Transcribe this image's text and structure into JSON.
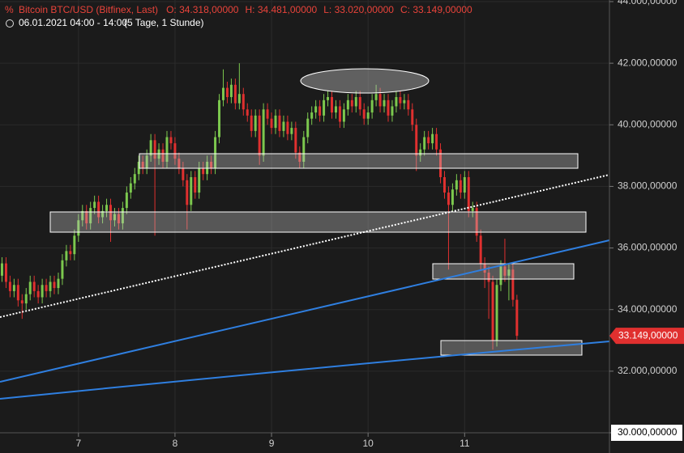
{
  "chart_data": {
    "type": "candlestick",
    "title": "Bitcoin BTC/USD (Bitfinex, Last)",
    "quote": [
      {
        "label": "O: 34.318,00000",
        "value": 34318
      },
      {
        "label": "H: 34.481,00000",
        "value": 34481
      },
      {
        "label": "L: 33.020,00000",
        "value": 33020
      },
      {
        "label": "C: 33.149,00000",
        "value": 33149
      }
    ],
    "subtitle": "06.01.2021 04:00 - 14:00",
    "period": "(5 Tage, 1 Stunde)",
    "up_color": "#7cc84e",
    "down_color": "#e0302f",
    "grid": true,
    "xlim": [
      0.5,
      152
    ],
    "xticks": [
      {
        "value": 20,
        "label": "7"
      },
      {
        "value": 44,
        "label": "8"
      },
      {
        "value": 68,
        "label": "9"
      },
      {
        "value": 92,
        "label": "10"
      },
      {
        "value": 116,
        "label": "11"
      }
    ],
    "ylim": [
      30000,
      44000
    ],
    "yticks": [
      {
        "value": 30000,
        "label": "30.000,00000"
      },
      {
        "value": 32000,
        "label": "32.000,00000"
      },
      {
        "value": 34000,
        "label": "34.000,00000"
      },
      {
        "value": 36000,
        "label": "36.000,00000"
      },
      {
        "value": 38000,
        "label": "38.000,00000"
      },
      {
        "value": 40000,
        "label": "40.000,00000"
      },
      {
        "value": 42000,
        "label": "42.000,00000"
      },
      {
        "value": 44000,
        "label": "44.000,00000"
      }
    ],
    "last_price": {
      "value": 33149,
      "label": "33.149,00000"
    },
    "open": [
      35300,
      35100,
      35500,
      34900,
      34600,
      34800,
      34300,
      34200,
      34500,
      34900,
      34600,
      34400,
      34800,
      34600,
      34900,
      34700,
      35000,
      35600,
      35900,
      35800,
      36400,
      36900,
      37200,
      36800,
      37300,
      37500,
      37000,
      37200,
      37400,
      36900,
      37100,
      36800,
      37300,
      37800,
      38100,
      38400,
      38800,
      38600,
      39000,
      39500,
      38900,
      39200,
      38800,
      39600,
      39400,
      38900,
      38600,
      38200,
      37400,
      38300,
      37800,
      38600,
      38400,
      38800,
      38600,
      39600,
      40800,
      41200,
      40900,
      41300,
      40700,
      41000,
      40500,
      40300,
      39800,
      40300,
      39000,
      40500,
      40200,
      39900,
      40300,
      39800,
      40100,
      39700,
      39900,
      39100,
      38800,
      39600,
      40200,
      40400,
      40600,
      40300,
      40800,
      40900,
      40400,
      40600,
      40100,
      40500,
      40800,
      40600,
      40900,
      40500,
      40200,
      40400,
      40800,
      41000,
      40600,
      40800,
      40300,
      40600,
      40900,
      40700,
      40800,
      40500,
      40000,
      39000,
      39200,
      39600,
      39400,
      39700,
      39200,
      38300,
      37800,
      37400,
      37900,
      38200,
      37800,
      38300,
      37200,
      37300,
      36400,
      35500,
      35200,
      34900,
      33000,
      34800,
      35400,
      35100,
      35300,
      34318
    ],
    "high": [
      35500,
      35700,
      35700,
      35100,
      35000,
      35000,
      34500,
      34700,
      35100,
      35100,
      34800,
      35000,
      35000,
      35100,
      35100,
      35200,
      35800,
      36100,
      36100,
      36600,
      37100,
      37400,
      37400,
      37500,
      37700,
      37700,
      37400,
      37600,
      37600,
      37300,
      37300,
      37500,
      38000,
      38300,
      38600,
      39000,
      39000,
      39200,
      39700,
      39700,
      39400,
      39400,
      39800,
      39800,
      39600,
      39100,
      38800,
      38400,
      38500,
      38500,
      38800,
      38800,
      39000,
      39000,
      39800,
      41000,
      41800,
      41400,
      41500,
      41500,
      42000,
      41200,
      40700,
      40500,
      40500,
      40500,
      40700,
      40700,
      40400,
      40500,
      40500,
      40300,
      40300,
      40100,
      40100,
      39300,
      39800,
      40400,
      40600,
      40800,
      40800,
      41000,
      41100,
      41100,
      40800,
      40800,
      40700,
      41000,
      41000,
      41100,
      41100,
      40700,
      40600,
      41000,
      41300,
      41200,
      41000,
      41000,
      40800,
      41100,
      41100,
      41000,
      41000,
      40700,
      40200,
      39400,
      39800,
      39800,
      39900,
      39900,
      39400,
      38500,
      38000,
      38100,
      38400,
      38400,
      38500,
      38500,
      37500,
      37500,
      36600,
      35700,
      35400,
      35100,
      35000,
      35600,
      36300,
      35500,
      35500,
      34481
    ],
    "low": [
      34900,
      34900,
      34700,
      34400,
      34400,
      34100,
      33700,
      34000,
      34300,
      34400,
      34200,
      34200,
      34400,
      34400,
      34500,
      34500,
      34800,
      35400,
      35600,
      35600,
      36200,
      36700,
      36600,
      36600,
      37100,
      36800,
      36800,
      37000,
      36200,
      36700,
      36600,
      36600,
      37100,
      37600,
      37900,
      38200,
      38400,
      38400,
      38800,
      36400,
      38700,
      38600,
      38600,
      39200,
      38700,
      38400,
      38000,
      36600,
      37200,
      37600,
      37600,
      38200,
      38200,
      38400,
      38400,
      39400,
      40600,
      40700,
      40700,
      40500,
      40500,
      40300,
      40100,
      39600,
      39600,
      38700,
      38800,
      40000,
      39700,
      39700,
      39600,
      39600,
      39500,
      39500,
      38900,
      38600,
      38600,
      39400,
      40000,
      40200,
      40100,
      40100,
      40600,
      40200,
      40200,
      39900,
      39900,
      40300,
      40400,
      40400,
      40300,
      40000,
      40000,
      40200,
      40600,
      40400,
      40400,
      40100,
      40100,
      40400,
      40500,
      40500,
      40300,
      39800,
      38500,
      38800,
      39000,
      39200,
      39200,
      39000,
      38100,
      37600,
      35300,
      37200,
      37700,
      37600,
      37600,
      37000,
      37000,
      36200,
      35300,
      34700,
      33700,
      32700,
      32800,
      34600,
      34900,
      34300,
      34100,
      33020
    ],
    "close": [
      35100,
      35500,
      34900,
      34600,
      34800,
      34300,
      34200,
      34500,
      34900,
      34600,
      34400,
      34800,
      34600,
      34900,
      34700,
      35000,
      35600,
      35900,
      35800,
      36400,
      36900,
      37200,
      36800,
      37300,
      37500,
      37000,
      37200,
      37400,
      36900,
      37100,
      36800,
      37300,
      37800,
      38100,
      38400,
      38800,
      38600,
      39000,
      39500,
      38900,
      39200,
      38800,
      39600,
      39400,
      38900,
      38600,
      38200,
      37400,
      38300,
      37800,
      38600,
      38400,
      38800,
      38600,
      39600,
      40800,
      41200,
      40900,
      41300,
      40700,
      41000,
      40500,
      40300,
      39800,
      40300,
      39000,
      40500,
      40200,
      39900,
      40300,
      39800,
      40100,
      39700,
      39900,
      39100,
      38800,
      39600,
      40200,
      40400,
      40600,
      40300,
      40800,
      40900,
      40400,
      40600,
      40100,
      40500,
      40800,
      40600,
      40900,
      40500,
      40200,
      40400,
      40800,
      41000,
      40600,
      40800,
      40300,
      40600,
      40900,
      40700,
      40800,
      40500,
      40000,
      39000,
      39200,
      39600,
      39400,
      39700,
      39200,
      38300,
      37800,
      37400,
      37900,
      38200,
      37800,
      38300,
      37200,
      37300,
      36400,
      35500,
      35200,
      34900,
      33000,
      34800,
      35400,
      35100,
      35300,
      34318,
      33149
    ]
  }
}
